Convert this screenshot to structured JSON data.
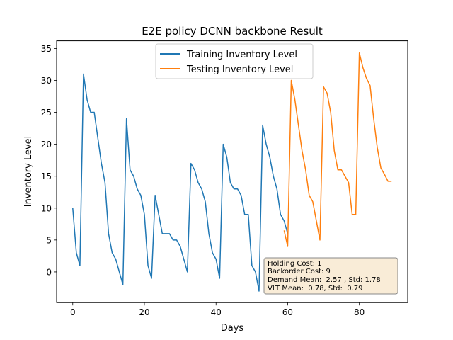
{
  "chart_data": {
    "type": "line",
    "title": "E2E policy DCNN backbone Result",
    "xlabel": "Days",
    "ylabel": "Inventory Level",
    "xlim": [
      -4.5,
      93.5
    ],
    "ylim": [
      -4.8,
      36.2
    ],
    "xticks": [
      0,
      20,
      40,
      60,
      80
    ],
    "yticks": [
      0,
      5,
      10,
      15,
      20,
      25,
      30,
      35
    ],
    "grid": false,
    "legend_position": "top-center",
    "series": [
      {
        "name": "Training Inventory Level",
        "color": "#1f77b4",
        "x": [
          0,
          1,
          2,
          3,
          4,
          5,
          6,
          7,
          8,
          9,
          10,
          11,
          12,
          13,
          14,
          15,
          16,
          17,
          18,
          19,
          20,
          21,
          22,
          23,
          24,
          25,
          26,
          27,
          28,
          29,
          30,
          31,
          32,
          33,
          34,
          35,
          36,
          37,
          38,
          39,
          40,
          41,
          42,
          43,
          44,
          45,
          46,
          47,
          48,
          49,
          50,
          51,
          52,
          53,
          54,
          55,
          56,
          57,
          58,
          59,
          60
        ],
        "values": [
          10,
          3,
          1,
          31,
          27,
          25,
          25,
          21,
          17,
          14,
          6,
          3,
          2,
          0,
          -2,
          24,
          16,
          15,
          13,
          12,
          9,
          1,
          -1,
          12,
          9,
          6,
          6,
          6,
          5,
          5,
          4,
          2,
          0,
          17,
          16,
          14,
          13,
          11,
          6,
          3,
          2,
          -1,
          20,
          18,
          14,
          13,
          13,
          12,
          9,
          9,
          1,
          0,
          -3,
          23,
          20,
          18,
          15,
          13,
          9,
          8,
          6
        ]
      },
      {
        "name": "Testing Inventory Level",
        "color": "#ff7f0e",
        "x": [
          59,
          60,
          61,
          62,
          63,
          64,
          65,
          66,
          67,
          68,
          69,
          70,
          71,
          72,
          73,
          74,
          75,
          76,
          77,
          78,
          79,
          80,
          81,
          82,
          83,
          84,
          85,
          86,
          87,
          88,
          89
        ],
        "values": [
          6.5,
          4,
          30,
          27,
          23,
          19,
          16,
          12,
          11,
          8,
          5,
          29,
          28,
          25,
          19,
          16,
          16,
          15,
          14,
          9,
          9,
          34.3,
          32,
          30.3,
          29.2,
          24,
          19.5,
          16.3,
          15.3,
          14.2,
          14.2
        ]
      }
    ],
    "annotation": {
      "lines": [
        "Holding Cost: 1",
        "Backorder Cost: 9",
        "Demand Mean:  2.57 , Std: 1.78",
        "VLT Mean:  0.78, Std:  0.79"
      ],
      "background": "#f9ecd7",
      "border": "#888888"
    }
  }
}
